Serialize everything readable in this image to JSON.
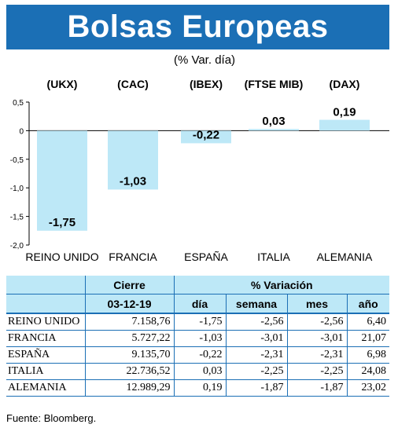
{
  "header": {
    "title": "Bolsas Europeas",
    "subtitle": "(% Var. día)"
  },
  "chart_data": {
    "type": "bar",
    "indices": [
      "(UKX)",
      "(CAC)",
      "(IBEX)",
      "(FTSE MIB)",
      "(DAX)"
    ],
    "categories": [
      "REINO UNIDO",
      "FRANCIA",
      "ESPAÑA",
      "ITALIA",
      "ALEMANIA"
    ],
    "values": [
      -1.75,
      -1.03,
      -0.22,
      0.03,
      0.19
    ],
    "value_labels": [
      "-1,75",
      "-1,03",
      "-0,22",
      "0,03",
      "0,19"
    ],
    "yticks": [
      0.5,
      0,
      -0.5,
      -1.0,
      -1.5,
      -2.0
    ],
    "ytick_labels": [
      "0,5",
      "0",
      "-0,5",
      "-1,0",
      "-1,5",
      "-2,0"
    ],
    "ylim": [
      -2.0,
      0.5
    ],
    "bar_color": "#bde8f7",
    "grid": false
  },
  "table": {
    "headers_top": [
      "",
      "Cierre",
      "% Variación"
    ],
    "headers_sub": [
      "",
      "03-12-19",
      "día",
      "semana",
      "mes",
      "año"
    ],
    "rows": [
      [
        "REINO UNIDO",
        "7.158,76",
        "-1,75",
        "-2,56",
        "-2,56",
        "6,40"
      ],
      [
        "FRANCIA",
        "5.727,22",
        "-1,03",
        "-3,01",
        "-3,01",
        "21,07"
      ],
      [
        "ESPAÑA",
        "9.135,70",
        "-0,22",
        "-2,31",
        "-2,31",
        "6,98"
      ],
      [
        "ITALIA",
        "22.736,52",
        "0,03",
        "-2,25",
        "-2,25",
        "24,08"
      ],
      [
        "ALEMANIA",
        "12.989,29",
        "0,19",
        "-1,87",
        "-1,87",
        "23,02"
      ]
    ]
  },
  "source": "Fuente: Bloomberg.",
  "colors": {
    "title_bg": "#1b6fb5",
    "accent": "#1b6fb5",
    "bar": "#bde8f7"
  }
}
